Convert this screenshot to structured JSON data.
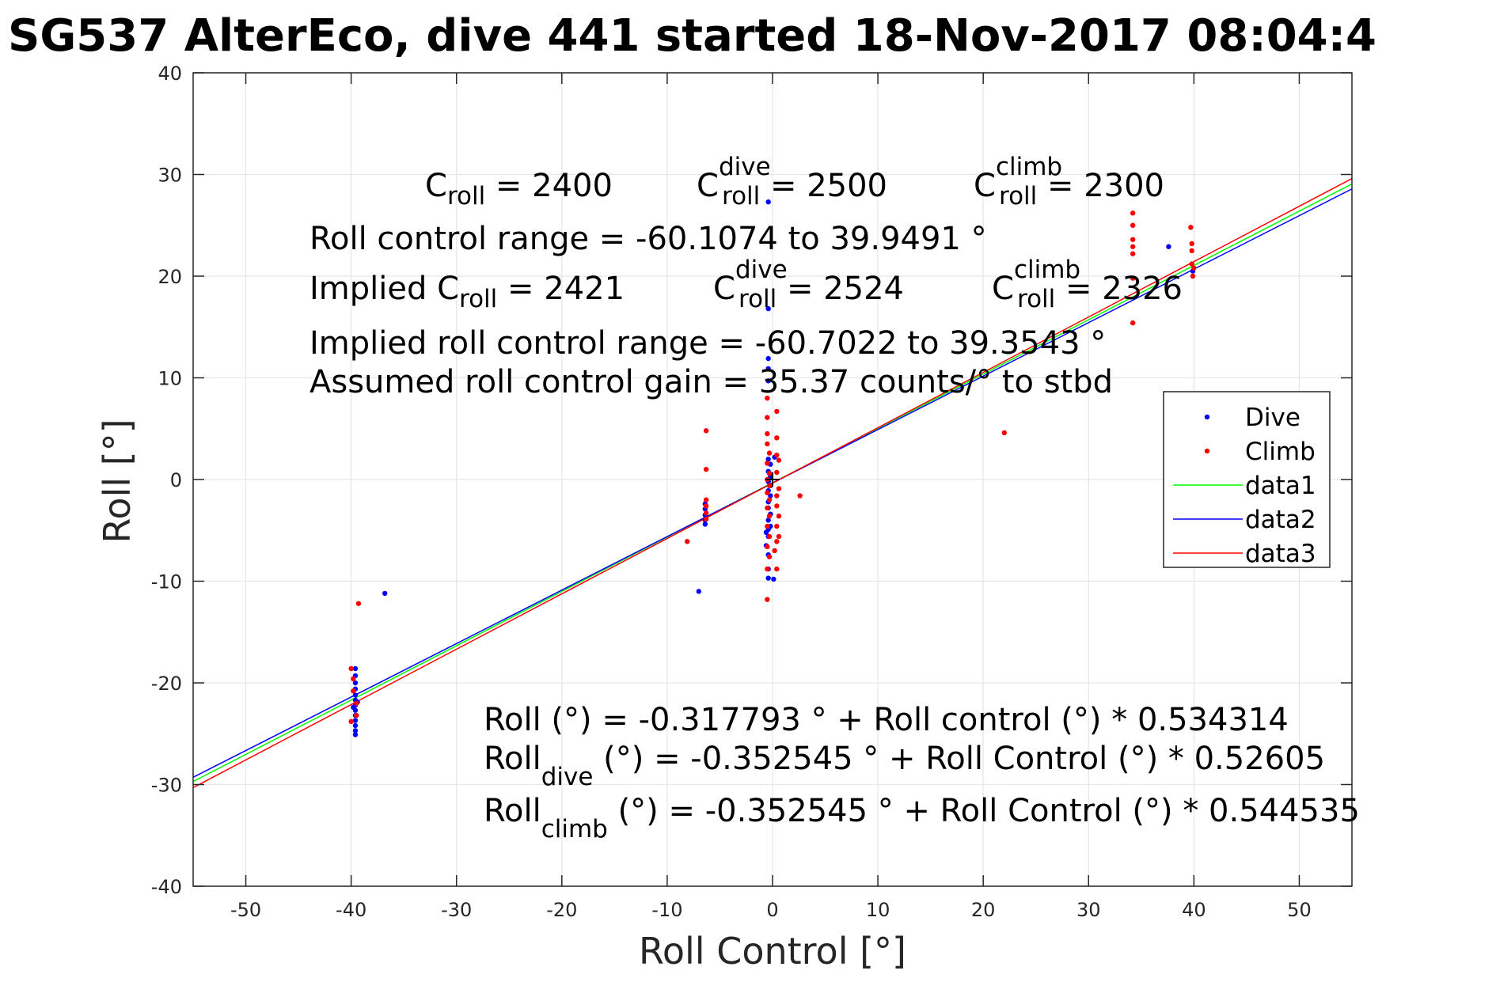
{
  "title": "SG537 AlterEco, dive 441 started 18-Nov-2017 08:04:4",
  "colors": {
    "dive": "#0000ff",
    "climb": "#ff0000",
    "data1": "#00ff00",
    "data2": "#0000ff",
    "data3": "#ff0000",
    "grid": "#e6e6e6",
    "axis": "#262626"
  },
  "annotations": {
    "c_roll": {
      "base": "C",
      "sub": "roll",
      "rest": " = 2400"
    },
    "c_roll_dive": {
      "base": "C",
      "sup": "dive",
      "sub": "roll",
      "rest": " = 2500"
    },
    "c_roll_climb": {
      "base": "C",
      "sup": "climb",
      "sub": "roll",
      "rest": " = 2300"
    },
    "range": "Roll control range = -60.1074 to 39.9491 °",
    "implied_c_roll": {
      "base": "Implied C",
      "sub": "roll",
      "rest": " = 2421"
    },
    "implied_c_roll_dive": {
      "base": "C",
      "sup": "dive",
      "sub": "roll",
      "rest": " = 2524"
    },
    "implied_c_roll_climb": {
      "base": "C",
      "sup": "climb",
      "sub": "roll",
      "rest": " = 2326"
    },
    "implied_range": "Implied roll control range = -60.7022 to 39.3543 °",
    "gain": "Assumed roll control gain = 35.37 counts/° to stbd",
    "fit_all": "Roll (°) = -0.317793 ° + Roll control (°) * 0.534314",
    "fit_dive": {
      "base": "Roll",
      "sub": "dive",
      "rest": " (°) = -0.352545 ° + Roll Control (°) * 0.52605"
    },
    "fit_climb": {
      "base": "Roll",
      "sub": "climb",
      "rest": " (°) = -0.352545 ° + Roll Control (°) * 0.544535"
    }
  },
  "chart_data": {
    "type": "scatter",
    "xlabel": "Roll Control [°]",
    "ylabel": "Roll [°]",
    "xlim": [
      -55,
      55
    ],
    "ylim": [
      -40,
      40
    ],
    "xticks": [
      -50,
      -40,
      -30,
      -20,
      -10,
      0,
      10,
      20,
      30,
      40,
      50
    ],
    "yticks": [
      -40,
      -30,
      -20,
      -10,
      0,
      10,
      20,
      30,
      40
    ],
    "grid": true,
    "legend_position": "right",
    "series": [
      {
        "name": "Dive",
        "kind": "points",
        "color": "#0000ff",
        "points": [
          [
            -39.6,
            -18.6
          ],
          [
            -39.6,
            -19.3
          ],
          [
            -39.6,
            -20.0
          ],
          [
            -39.6,
            -20.6
          ],
          [
            -39.6,
            -21.2
          ],
          [
            -39.6,
            -21.7
          ],
          [
            -39.6,
            -22.2
          ],
          [
            -39.6,
            -22.7
          ],
          [
            -39.6,
            -23.2
          ],
          [
            -39.6,
            -23.7
          ],
          [
            -39.6,
            -24.2
          ],
          [
            -39.6,
            -24.7
          ],
          [
            -39.6,
            -25.1
          ],
          [
            -39.4,
            -21.9
          ],
          [
            -39.8,
            -22.4
          ],
          [
            -36.8,
            -11.2
          ],
          [
            -6.4,
            -2.4
          ],
          [
            -6.4,
            -2.9
          ],
          [
            -6.4,
            -3.5
          ],
          [
            -6.4,
            -4.0
          ],
          [
            -6.4,
            -4.4
          ],
          [
            -7.0,
            -11.0
          ],
          [
            -0.4,
            27.3
          ],
          [
            -0.4,
            16.8
          ],
          [
            -0.4,
            11.9
          ],
          [
            -0.4,
            10.9
          ],
          [
            -0.4,
            9.7
          ],
          [
            -0.4,
            2.0
          ],
          [
            -0.2,
            1.5
          ],
          [
            -0.4,
            0.8
          ],
          [
            -0.2,
            0.3
          ],
          [
            -0.4,
            -0.2
          ],
          [
            -0.2,
            -0.6
          ],
          [
            -0.4,
            -1.1
          ],
          [
            -0.2,
            -1.6
          ],
          [
            -0.4,
            -2.2
          ],
          [
            -0.4,
            -2.8
          ],
          [
            -0.2,
            -3.4
          ],
          [
            -0.4,
            -4.0
          ],
          [
            -0.2,
            -4.6
          ],
          [
            -0.4,
            -4.9
          ],
          [
            -0.6,
            -5.2
          ],
          [
            -0.4,
            -5.6
          ],
          [
            -0.6,
            -6.5
          ],
          [
            -0.4,
            -7.4
          ],
          [
            -0.4,
            -8.8
          ],
          [
            -0.4,
            -9.7
          ],
          [
            0.1,
            -9.8
          ],
          [
            0.2,
            2.2
          ],
          [
            37.6,
            22.9
          ],
          [
            39.9,
            20.5
          ]
        ]
      },
      {
        "name": "Climb",
        "kind": "points",
        "color": "#ff0000",
        "points": [
          [
            -39.3,
            -12.2
          ],
          [
            -40.0,
            -18.6
          ],
          [
            -39.8,
            -19.6
          ],
          [
            -39.8,
            -20.8
          ],
          [
            -39.5,
            -22.0
          ],
          [
            -40.0,
            -23.8
          ],
          [
            -39.5,
            -23.2
          ],
          [
            -8.1,
            -6.1
          ],
          [
            -6.3,
            4.8
          ],
          [
            -6.3,
            1.0
          ],
          [
            -6.3,
            -2.0
          ],
          [
            -6.3,
            -2.6
          ],
          [
            -6.3,
            -3.3
          ],
          [
            -6.3,
            -3.9
          ],
          [
            -0.5,
            8.0
          ],
          [
            -0.5,
            6.1
          ],
          [
            -0.5,
            4.5
          ],
          [
            -0.5,
            3.5
          ],
          [
            -0.3,
            2.6
          ],
          [
            -0.5,
            1.6
          ],
          [
            -0.3,
            0.6
          ],
          [
            -0.5,
            0.0
          ],
          [
            -0.3,
            -0.6
          ],
          [
            -0.5,
            -1.3
          ],
          [
            -0.3,
            -2.0
          ],
          [
            -0.5,
            -2.8
          ],
          [
            -0.3,
            -3.6
          ],
          [
            -0.5,
            -4.6
          ],
          [
            -0.3,
            -5.6
          ],
          [
            -0.5,
            -6.6
          ],
          [
            -0.3,
            -7.6
          ],
          [
            -0.5,
            -8.8
          ],
          [
            -0.5,
            -11.8
          ],
          [
            0.4,
            6.7
          ],
          [
            0.4,
            4.1
          ],
          [
            0.4,
            2.4
          ],
          [
            0.6,
            1.9
          ],
          [
            0.4,
            0.7
          ],
          [
            0.6,
            -0.9
          ],
          [
            0.4,
            -1.6
          ],
          [
            0.4,
            -2.6
          ],
          [
            0.6,
            -3.6
          ],
          [
            0.4,
            -4.6
          ],
          [
            0.6,
            -5.6
          ],
          [
            0.4,
            -6.1
          ],
          [
            0.2,
            -7.0
          ],
          [
            0.4,
            -8.8
          ],
          [
            2.6,
            -1.6
          ],
          [
            22.0,
            4.6
          ],
          [
            34.2,
            26.2
          ],
          [
            34.2,
            25.0
          ],
          [
            34.2,
            23.6
          ],
          [
            34.2,
            22.9
          ],
          [
            34.2,
            22.2
          ],
          [
            34.2,
            19.8
          ],
          [
            34.2,
            15.4
          ],
          [
            39.7,
            24.8
          ],
          [
            39.8,
            23.2
          ],
          [
            39.8,
            22.5
          ],
          [
            39.8,
            21.2
          ],
          [
            40.0,
            20.8
          ],
          [
            39.9,
            20.0
          ]
        ]
      },
      {
        "name": "data1",
        "kind": "line",
        "color": "#00ff00",
        "intercept": -0.317793,
        "slope": 0.534314,
        "x": [
          -55,
          55
        ]
      },
      {
        "name": "data2",
        "kind": "line",
        "color": "#0000ff",
        "intercept": -0.352545,
        "slope": 0.52605,
        "x": [
          -55,
          55
        ]
      },
      {
        "name": "data3",
        "kind": "line",
        "color": "#ff0000",
        "intercept": -0.352545,
        "slope": 0.544535,
        "x": [
          -55,
          55
        ]
      }
    ],
    "marker": {
      "x": 0,
      "y": 0,
      "shape": "plus"
    }
  }
}
